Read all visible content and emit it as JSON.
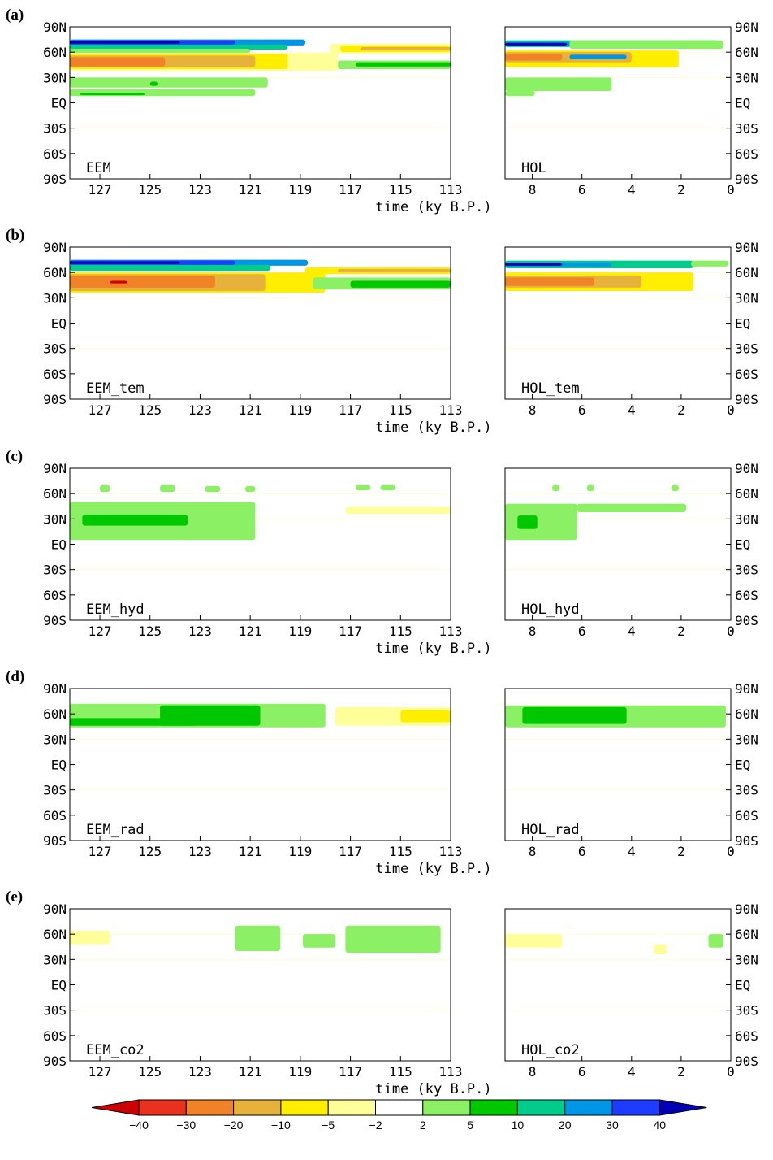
{
  "chart_data": {
    "type": "heatmap",
    "x_label": "time (ky B.P.)",
    "y_ticks": [
      "90N",
      "60N",
      "30N",
      "EQ",
      "30S",
      "60S",
      "90S"
    ],
    "eem_x_ticks": [
      "127",
      "125",
      "123",
      "121",
      "119",
      "117",
      "115",
      "113"
    ],
    "hol_x_ticks": [
      "8",
      "6",
      "4",
      "2",
      "0"
    ],
    "eem_xlim": [
      128.2,
      113
    ],
    "hol_xlim": [
      9.1,
      0
    ],
    "ylim": [
      -90,
      90
    ],
    "colorbar": {
      "ticks": [
        "−40",
        "−30",
        "−20",
        "−10",
        "−5",
        "−2",
        "2",
        "5",
        "10",
        "20",
        "30",
        "40"
      ],
      "colors": [
        "#cc0000",
        "#e8321e",
        "#f08228",
        "#e6b23c",
        "#ffee00",
        "#ffff99",
        "#ffffff",
        "#8cf064",
        "#00c800",
        "#00cc8c",
        "#0096e6",
        "#1e3cff",
        "#0000b4"
      ]
    },
    "rows": [
      {
        "letter": "(a)",
        "eem_label": "EEM",
        "hol_label": "HOL",
        "eem_bands": [
          {
            "x0": 128.2,
            "x1": 118.8,
            "lat0": 75,
            "lat1": 68,
            "color": "#0096e6"
          },
          {
            "x0": 128.2,
            "x1": 121.6,
            "lat0": 74,
            "lat1": 69,
            "color": "#1e3cff"
          },
          {
            "x0": 128.2,
            "x1": 123.8,
            "lat0": 73,
            "lat1": 70,
            "color": "#0000b4"
          },
          {
            "x0": 128.2,
            "x1": 119.5,
            "lat0": 69,
            "lat1": 63,
            "color": "#00cc8c"
          },
          {
            "x0": 128.2,
            "x1": 121.0,
            "lat0": 64,
            "lat1": 59,
            "color": "#8cf064"
          },
          {
            "x0": 117.8,
            "x1": 113.0,
            "lat0": 70,
            "lat1": 58,
            "color": "#ffff99"
          },
          {
            "x0": 117.4,
            "x1": 113.0,
            "lat0": 68,
            "lat1": 60,
            "color": "#ffee00"
          },
          {
            "x0": 116.6,
            "x1": 113.0,
            "lat0": 66,
            "lat1": 62,
            "color": "#e6b23c"
          },
          {
            "x0": 128.2,
            "x1": 117.5,
            "lat0": 59,
            "lat1": 38,
            "color": "#ffff99"
          },
          {
            "x0": 128.2,
            "x1": 119.5,
            "lat0": 58,
            "lat1": 40,
            "color": "#ffee00"
          },
          {
            "x0": 128.2,
            "x1": 120.8,
            "lat0": 56,
            "lat1": 42,
            "color": "#e6b23c"
          },
          {
            "x0": 128.2,
            "x1": 124.4,
            "lat0": 54,
            "lat1": 43,
            "color": "#f08228"
          },
          {
            "x0": 117.5,
            "x1": 113.0,
            "lat0": 50,
            "lat1": 40,
            "color": "#8cf064"
          },
          {
            "x0": 116.8,
            "x1": 113.0,
            "lat0": 48,
            "lat1": 43,
            "color": "#00c800"
          },
          {
            "x0": 128.2,
            "x1": 120.3,
            "lat0": 30,
            "lat1": 18,
            "color": "#8cf064"
          },
          {
            "x0": 128.2,
            "x1": 120.8,
            "lat0": 16,
            "lat1": 8,
            "color": "#8cf064"
          },
          {
            "x0": 127.8,
            "x1": 125.2,
            "lat0": 12,
            "lat1": 9,
            "color": "#00c800"
          },
          {
            "x0": 125.0,
            "x1": 124.7,
            "lat0": 25,
            "lat1": 20,
            "color": "#00c800"
          }
        ],
        "hol_bands": [
          {
            "x0": 9.1,
            "x1": 0.5,
            "lat0": 74,
            "lat1": 66,
            "color": "#00cc8c"
          },
          {
            "x0": 9.1,
            "x1": 4.5,
            "lat0": 72,
            "lat1": 67,
            "color": "#0096e6"
          },
          {
            "x0": 9.1,
            "x1": 6.6,
            "lat0": 71,
            "lat1": 68,
            "color": "#0000b4"
          },
          {
            "x0": 6.5,
            "x1": 0.3,
            "lat0": 74,
            "lat1": 64,
            "color": "#8cf064"
          },
          {
            "x0": 9.1,
            "x1": 2.1,
            "lat0": 62,
            "lat1": 42,
            "color": "#ffee00"
          },
          {
            "x0": 9.1,
            "x1": 4.0,
            "lat0": 60,
            "lat1": 48,
            "color": "#e6b23c"
          },
          {
            "x0": 9.1,
            "x1": 6.8,
            "lat0": 58,
            "lat1": 50,
            "color": "#f08228"
          },
          {
            "x0": 6.5,
            "x1": 4.2,
            "lat0": 57,
            "lat1": 52,
            "color": "#0096e6"
          },
          {
            "x0": 9.1,
            "x1": 4.8,
            "lat0": 30,
            "lat1": 14,
            "color": "#8cf064"
          },
          {
            "x0": 9.1,
            "x1": 7.9,
            "lat0": 14,
            "lat1": 8,
            "color": "#8cf064"
          }
        ]
      },
      {
        "letter": "(b)",
        "eem_label": "EEM_tem",
        "hol_label": "HOL_tem",
        "eem_bands": [
          {
            "x0": 128.2,
            "x1": 118.7,
            "lat0": 75,
            "lat1": 68,
            "color": "#0096e6"
          },
          {
            "x0": 128.2,
            "x1": 121.6,
            "lat0": 74,
            "lat1": 69,
            "color": "#1e3cff"
          },
          {
            "x0": 128.2,
            "x1": 123.8,
            "lat0": 73,
            "lat1": 70,
            "color": "#0000b4"
          },
          {
            "x0": 128.2,
            "x1": 120.2,
            "lat0": 69,
            "lat1": 62,
            "color": "#00cc8c"
          },
          {
            "x0": 118.8,
            "x1": 113.0,
            "lat0": 66,
            "lat1": 58,
            "color": "#ffee00"
          },
          {
            "x0": 117.5,
            "x1": 113.0,
            "lat0": 64,
            "lat1": 60,
            "color": "#e6b23c"
          },
          {
            "x0": 128.2,
            "x1": 118.0,
            "lat0": 60,
            "lat1": 36,
            "color": "#ffee00"
          },
          {
            "x0": 128.2,
            "x1": 120.4,
            "lat0": 58,
            "lat1": 38,
            "color": "#e6b23c"
          },
          {
            "x0": 128.2,
            "x1": 122.4,
            "lat0": 56,
            "lat1": 42,
            "color": "#f08228"
          },
          {
            "x0": 126.6,
            "x1": 125.9,
            "lat0": 50,
            "lat1": 47,
            "color": "#cc0000"
          },
          {
            "x0": 118.5,
            "x1": 113.0,
            "lat0": 54,
            "lat1": 40,
            "color": "#8cf064"
          },
          {
            "x0": 117.0,
            "x1": 113.0,
            "lat0": 50,
            "lat1": 42,
            "color": "#00c800"
          }
        ],
        "hol_bands": [
          {
            "x0": 9.1,
            "x1": 1.5,
            "lat0": 74,
            "lat1": 65,
            "color": "#00cc8c"
          },
          {
            "x0": 9.1,
            "x1": 4.8,
            "lat0": 72,
            "lat1": 67,
            "color": "#0096e6"
          },
          {
            "x0": 9.1,
            "x1": 6.8,
            "lat0": 71,
            "lat1": 68,
            "color": "#0000b4"
          },
          {
            "x0": 1.6,
            "x1": 0.1,
            "lat0": 74,
            "lat1": 67,
            "color": "#8cf064"
          },
          {
            "x0": 9.1,
            "x1": 1.5,
            "lat0": 60,
            "lat1": 38,
            "color": "#ffee00"
          },
          {
            "x0": 9.1,
            "x1": 3.6,
            "lat0": 56,
            "lat1": 42,
            "color": "#e6b23c"
          },
          {
            "x0": 9.1,
            "x1": 5.5,
            "lat0": 54,
            "lat1": 44,
            "color": "#f08228"
          }
        ]
      },
      {
        "letter": "(c)",
        "eem_label": "EEM_hyd",
        "hol_label": "HOL_hyd",
        "eem_bands": [
          {
            "x0": 127.0,
            "x1": 126.6,
            "lat0": 70,
            "lat1": 62,
            "color": "#8cf064"
          },
          {
            "x0": 124.6,
            "x1": 124.0,
            "lat0": 70,
            "lat1": 62,
            "color": "#8cf064"
          },
          {
            "x0": 122.8,
            "x1": 122.2,
            "lat0": 69,
            "lat1": 62,
            "color": "#8cf064"
          },
          {
            "x0": 121.2,
            "x1": 120.8,
            "lat0": 69,
            "lat1": 62,
            "color": "#8cf064"
          },
          {
            "x0": 128.2,
            "x1": 120.8,
            "lat0": 50,
            "lat1": 5,
            "color": "#8cf064"
          },
          {
            "x0": 127.7,
            "x1": 123.5,
            "lat0": 35,
            "lat1": 22,
            "color": "#00c800"
          },
          {
            "x0": 117.2,
            "x1": 113.0,
            "lat0": 44,
            "lat1": 36,
            "color": "#ffff99"
          },
          {
            "x0": 116.8,
            "x1": 116.2,
            "lat0": 70,
            "lat1": 64,
            "color": "#8cf064"
          },
          {
            "x0": 115.8,
            "x1": 115.2,
            "lat0": 70,
            "lat1": 64,
            "color": "#8cf064"
          }
        ],
        "hol_bands": [
          {
            "x0": 9.1,
            "x1": 6.2,
            "lat0": 48,
            "lat1": 5,
            "color": "#8cf064"
          },
          {
            "x0": 6.2,
            "x1": 1.8,
            "lat0": 48,
            "lat1": 38,
            "color": "#8cf064"
          },
          {
            "x0": 7.2,
            "x1": 6.9,
            "lat0": 70,
            "lat1": 63,
            "color": "#8cf064"
          },
          {
            "x0": 5.8,
            "x1": 5.5,
            "lat0": 70,
            "lat1": 63,
            "color": "#8cf064"
          },
          {
            "x0": 2.4,
            "x1": 2.1,
            "lat0": 70,
            "lat1": 63,
            "color": "#8cf064"
          },
          {
            "x0": 8.6,
            "x1": 7.8,
            "lat0": 34,
            "lat1": 18,
            "color": "#00c800"
          }
        ]
      },
      {
        "letter": "(d)",
        "eem_label": "EEM_rad",
        "hol_label": "HOL_rad",
        "eem_bands": [
          {
            "x0": 128.2,
            "x1": 118.0,
            "lat0": 72,
            "lat1": 44,
            "color": "#8cf064"
          },
          {
            "x0": 124.6,
            "x1": 120.6,
            "lat0": 70,
            "lat1": 46,
            "color": "#00c800"
          },
          {
            "x0": 128.2,
            "x1": 123.2,
            "lat0": 55,
            "lat1": 46,
            "color": "#00c800"
          },
          {
            "x0": 117.6,
            "x1": 113.0,
            "lat0": 68,
            "lat1": 46,
            "color": "#ffff99"
          },
          {
            "x0": 115.0,
            "x1": 113.0,
            "lat0": 64,
            "lat1": 50,
            "color": "#ffee00"
          }
        ],
        "hol_bands": [
          {
            "x0": 9.1,
            "x1": 0.2,
            "lat0": 70,
            "lat1": 44,
            "color": "#8cf064"
          },
          {
            "x0": 8.4,
            "x1": 4.2,
            "lat0": 68,
            "lat1": 48,
            "color": "#00c800"
          }
        ]
      },
      {
        "letter": "(e)",
        "eem_label": "EEM_co2",
        "hol_label": "HOL_co2",
        "eem_bands": [
          {
            "x0": 128.2,
            "x1": 126.6,
            "lat0": 64,
            "lat1": 48,
            "color": "#ffff99"
          },
          {
            "x0": 121.6,
            "x1": 119.8,
            "lat0": 70,
            "lat1": 40,
            "color": "#8cf064"
          },
          {
            "x0": 118.9,
            "x1": 117.6,
            "lat0": 60,
            "lat1": 44,
            "color": "#8cf064"
          },
          {
            "x0": 117.2,
            "x1": 113.4,
            "lat0": 70,
            "lat1": 38,
            "color": "#8cf064"
          }
        ],
        "hol_bands": [
          {
            "x0": 9.1,
            "x1": 6.8,
            "lat0": 60,
            "lat1": 44,
            "color": "#ffff99"
          },
          {
            "x0": 3.1,
            "x1": 2.6,
            "lat0": 48,
            "lat1": 36,
            "color": "#ffff99"
          },
          {
            "x0": 0.9,
            "x1": 0.3,
            "lat0": 60,
            "lat1": 44,
            "color": "#8cf064"
          }
        ]
      }
    ]
  }
}
